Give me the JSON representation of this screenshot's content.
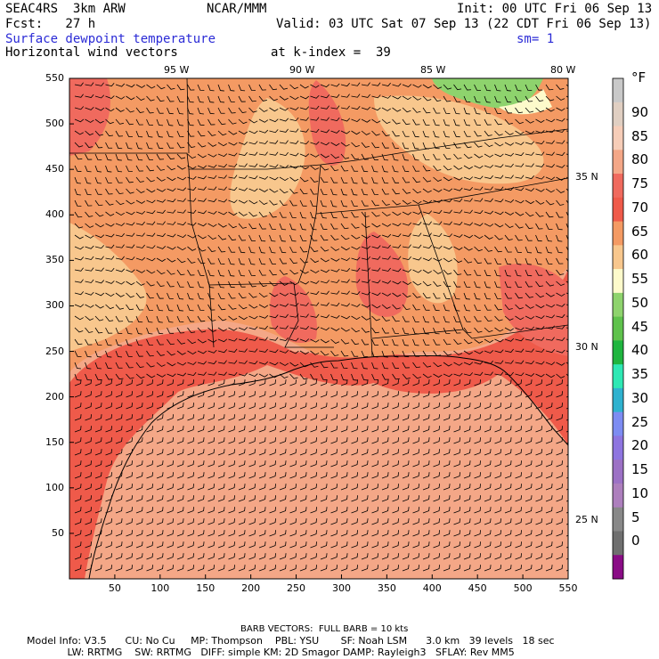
{
  "header": {
    "model": "SEAC4RS  3km ARW",
    "org": "NCAR/MMM",
    "init": "Init: 00 UTC Fri 06 Sep 13",
    "fcst": "Fcst:   27 h",
    "valid": "Valid: 03 UTC Sat 07 Sep 13 (22 CDT Fri 06 Sep 13)",
    "field": "Surface dewpoint temperature",
    "sm": "sm= 1",
    "vectors": "Horizontal wind vectors",
    "kindex": "at k-index =  39"
  },
  "lon_labels": [
    "95 W",
    "90 W",
    "85 W",
    "80 W"
  ],
  "lat_labels": [
    "35 N",
    "30 N",
    "25 N"
  ],
  "x_ticks": [
    50,
    100,
    150,
    200,
    250,
    300,
    350,
    400,
    450,
    500,
    550
  ],
  "y_ticks": [
    50,
    100,
    150,
    200,
    250,
    300,
    350,
    400,
    450,
    500,
    550
  ],
  "colorbar": {
    "unit": "°F",
    "levels": [
      "90",
      "85",
      "80",
      "75",
      "70",
      "65",
      "60",
      "55",
      "50",
      "45",
      "40",
      "35",
      "30",
      "25",
      "20",
      "15",
      "10",
      "5",
      "0"
    ],
    "colors": [
      "#c9c9c9",
      "#e0cfc2",
      "#f6cdb8",
      "#f4a787",
      "#f06a5e",
      "#ef5a4a",
      "#f49a63",
      "#f8c78d",
      "#fdfacb",
      "#8ed36d",
      "#5fc24c",
      "#1fb53f",
      "#2ee8b4",
      "#2fb2cf",
      "#7d8cf2",
      "#8e75e0",
      "#9c71c5",
      "#ad7fbd",
      "#888888",
      "#6f6f6f",
      "#8a0c86"
    ]
  },
  "footer": {
    "barb": "BARB VECTORS:  FULL BARB = 10 kts",
    "line1": "Model Info: V3.5      CU: No Cu     MP: Thompson    PBL: YSU       SF: Noah LSM      3.0 km   39 levels   18 sec",
    "line2": "             LW: RRTMG    SW: RRTMG   DIFF: simple KM: 2D Smagor DAMP: Rayleigh3   SFLAY: Rev MM5"
  }
}
